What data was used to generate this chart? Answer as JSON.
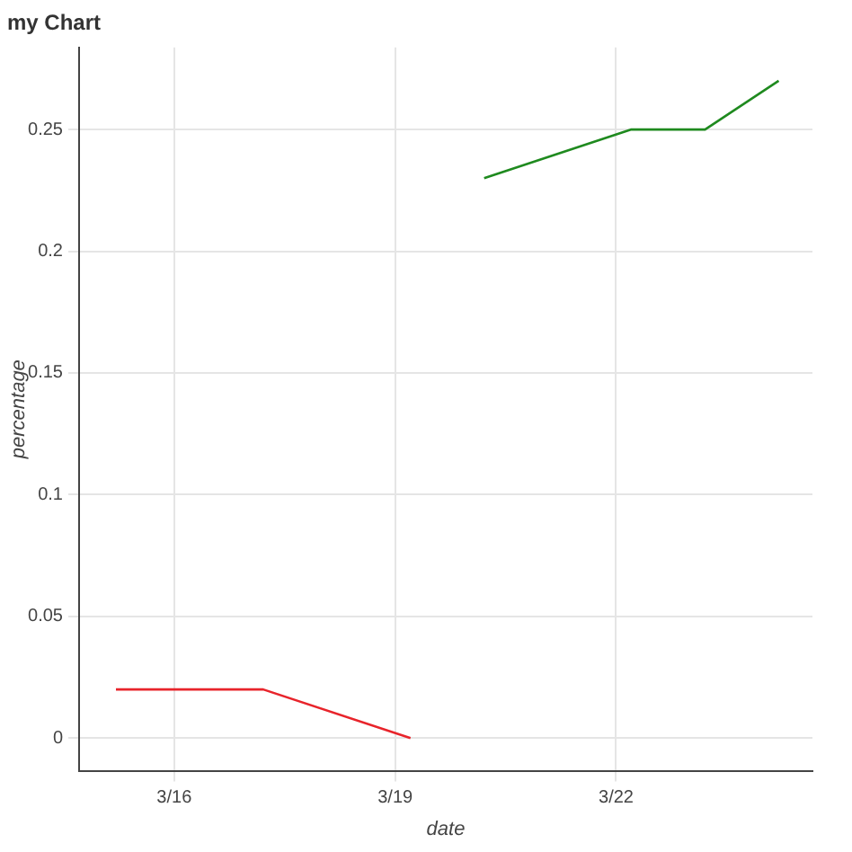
{
  "chart_data": {
    "type": "line",
    "title": "my Chart",
    "xlabel": "date",
    "ylabel": "percentage",
    "xlim": [
      "--03-14T17:00",
      "--03-24T16:00"
    ],
    "xticks": [
      {
        "value": "--03-16",
        "label": "3/16"
      },
      {
        "value": "--03-19",
        "label": "3/19"
      },
      {
        "value": "--03-22",
        "label": "3/22"
      }
    ],
    "ylim": [
      -0.0134,
      0.2837
    ],
    "yticks": [
      0,
      0.05,
      0.1,
      0.15,
      0.2,
      0.25
    ],
    "series": [
      {
        "color": "#e8242b",
        "x": [
          "--03-15T05:00",
          "--03-17T05:00",
          "--03-19T05:00"
        ],
        "values": [
          0.02,
          0.02,
          0
        ]
      },
      {
        "color": "#1f8a1f",
        "x": [
          "--03-20T05:00",
          "--03-22T05:00",
          "--03-23T05:00",
          "--03-24T05:00"
        ],
        "values": [
          0.23,
          0.25,
          0.25,
          0.27
        ]
      }
    ],
    "grid": true,
    "legend": false,
    "marker": "none",
    "line_style": "solid"
  }
}
